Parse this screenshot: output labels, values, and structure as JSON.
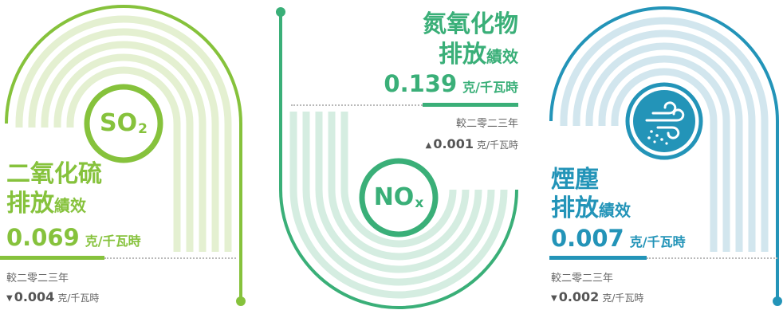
{
  "panels": [
    {
      "colors": {
        "accent": "#86c23c",
        "light": "#e4f0d1"
      },
      "badge": {
        "main": "SO",
        "sub": "2"
      },
      "title": "二氧化硫",
      "subtitle": {
        "large": "排放",
        "small": "績效"
      },
      "value": "0.069",
      "unit": "克/千瓦時",
      "compare_label": "較二零二三年",
      "change": {
        "arrow": "▼",
        "value": "0.004",
        "unit": "克/千瓦時"
      }
    },
    {
      "colors": {
        "accent": "#3aaf78",
        "light": "#d5ede1"
      },
      "badge": {
        "main": "NO",
        "sub": "x"
      },
      "title": "氮氧化物",
      "subtitle": {
        "large": "排放",
        "small": "績效"
      },
      "value": "0.139",
      "unit": "克/千瓦時",
      "compare_label": "較二零二三年",
      "change": {
        "arrow": "▲",
        "value": "0.001",
        "unit": "克/千瓦時"
      }
    },
    {
      "colors": {
        "accent": "#2394b8",
        "light": "#d2e6ee"
      },
      "badge": {
        "icon": "wind-dust-icon"
      },
      "title": "煙塵",
      "subtitle": {
        "large": "排放",
        "small": "績效"
      },
      "value": "0.007",
      "unit": "克/千瓦時",
      "compare_label": "較二零二三年",
      "change": {
        "arrow": "▼",
        "value": "0.002",
        "unit": "克/千瓦時"
      }
    }
  ]
}
